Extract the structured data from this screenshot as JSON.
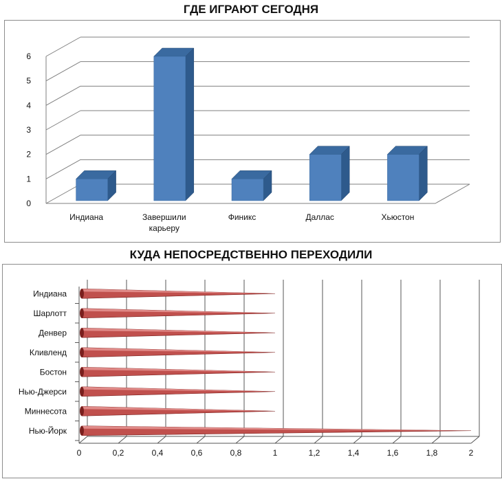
{
  "chart_data": [
    {
      "type": "bar",
      "orientation": "vertical",
      "title": "ГДЕ ИГРАЮТ СЕГОДНЯ",
      "categories": [
        "Индиана",
        "Завершили карьеру",
        "Финикс",
        "Даллас",
        "Хьюстон"
      ],
      "values": [
        1,
        6,
        1,
        2,
        2
      ],
      "ylim": [
        0,
        6
      ],
      "yticks": [
        "0",
        "1",
        "2",
        "3",
        "4",
        "5",
        "6"
      ],
      "grid": true,
      "legend": "none",
      "style": "3d-column",
      "colors": {
        "bar_front": "#4f81bd",
        "bar_side": "#2e5a8c",
        "bar_top": "#3a6aa0"
      }
    },
    {
      "type": "bar",
      "orientation": "horizontal",
      "title": "КУДА НЕПОСРЕДСТВЕННО ПЕРЕХОДИЛИ",
      "categories": [
        "Индиана",
        "Шарлотт",
        "Денвер",
        "Кливленд",
        "Бостон",
        "Нью-Джерси",
        "Миннесота",
        "Нью-Йорк"
      ],
      "values": [
        1,
        1,
        1,
        1,
        1,
        1,
        1,
        2
      ],
      "xlim": [
        0,
        2
      ],
      "xticks": [
        "0",
        "0,2",
        "0,4",
        "0,6",
        "0,8",
        "1",
        "1,2",
        "1,4",
        "1,6",
        "1,8",
        "2"
      ],
      "grid": true,
      "legend": "none",
      "style": "3d-cone",
      "colors": {
        "bar_fill": "#c0504d",
        "bar_dark": "#7a1f1d"
      }
    }
  ]
}
